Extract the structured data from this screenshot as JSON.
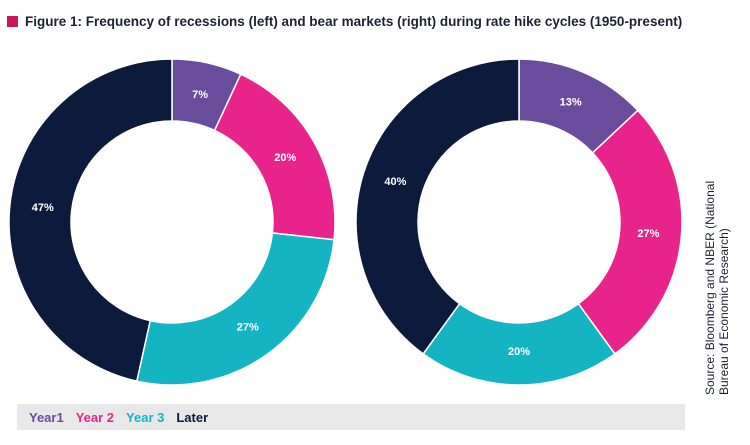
{
  "title": "Figure 1: Frequency of recessions (left) and bear markets (right) during rate hike cycles (1950-present)",
  "source": "Source: Bloomberg and NBER (National Bureau of Economic Research)",
  "colors": {
    "marker": "#c8175d",
    "year1": "#6a4c9c",
    "year2": "#e8248a",
    "year3": "#14b4c2",
    "later": "#0c1a3c"
  },
  "legend": [
    {
      "label": "Year1",
      "color": "#6a4c9c"
    },
    {
      "label": "Year 2",
      "color": "#e8248a"
    },
    {
      "label": "Year 3",
      "color": "#14b4c2"
    },
    {
      "label": "Later",
      "color": "#0c1a3c"
    }
  ],
  "chart_data": [
    {
      "type": "pie",
      "title": "",
      "categories": [
        "Year1",
        "Year 2",
        "Year 3",
        "Later"
      ],
      "values": [
        7,
        20,
        27,
        47
      ],
      "labels": [
        "7%",
        "20%",
        "27%",
        "47%"
      ],
      "colors": [
        "#6a4c9c",
        "#e8248a",
        "#14b4c2",
        "#0c1a3c"
      ]
    },
    {
      "type": "pie",
      "title": "",
      "categories": [
        "Year1",
        "Year 2",
        "Year 3",
        "Later"
      ],
      "values": [
        13,
        27,
        20,
        40
      ],
      "labels": [
        "13%",
        "27%",
        "20%",
        "40%"
      ],
      "colors": [
        "#6a4c9c",
        "#e8248a",
        "#14b4c2",
        "#0c1a3c"
      ]
    }
  ]
}
